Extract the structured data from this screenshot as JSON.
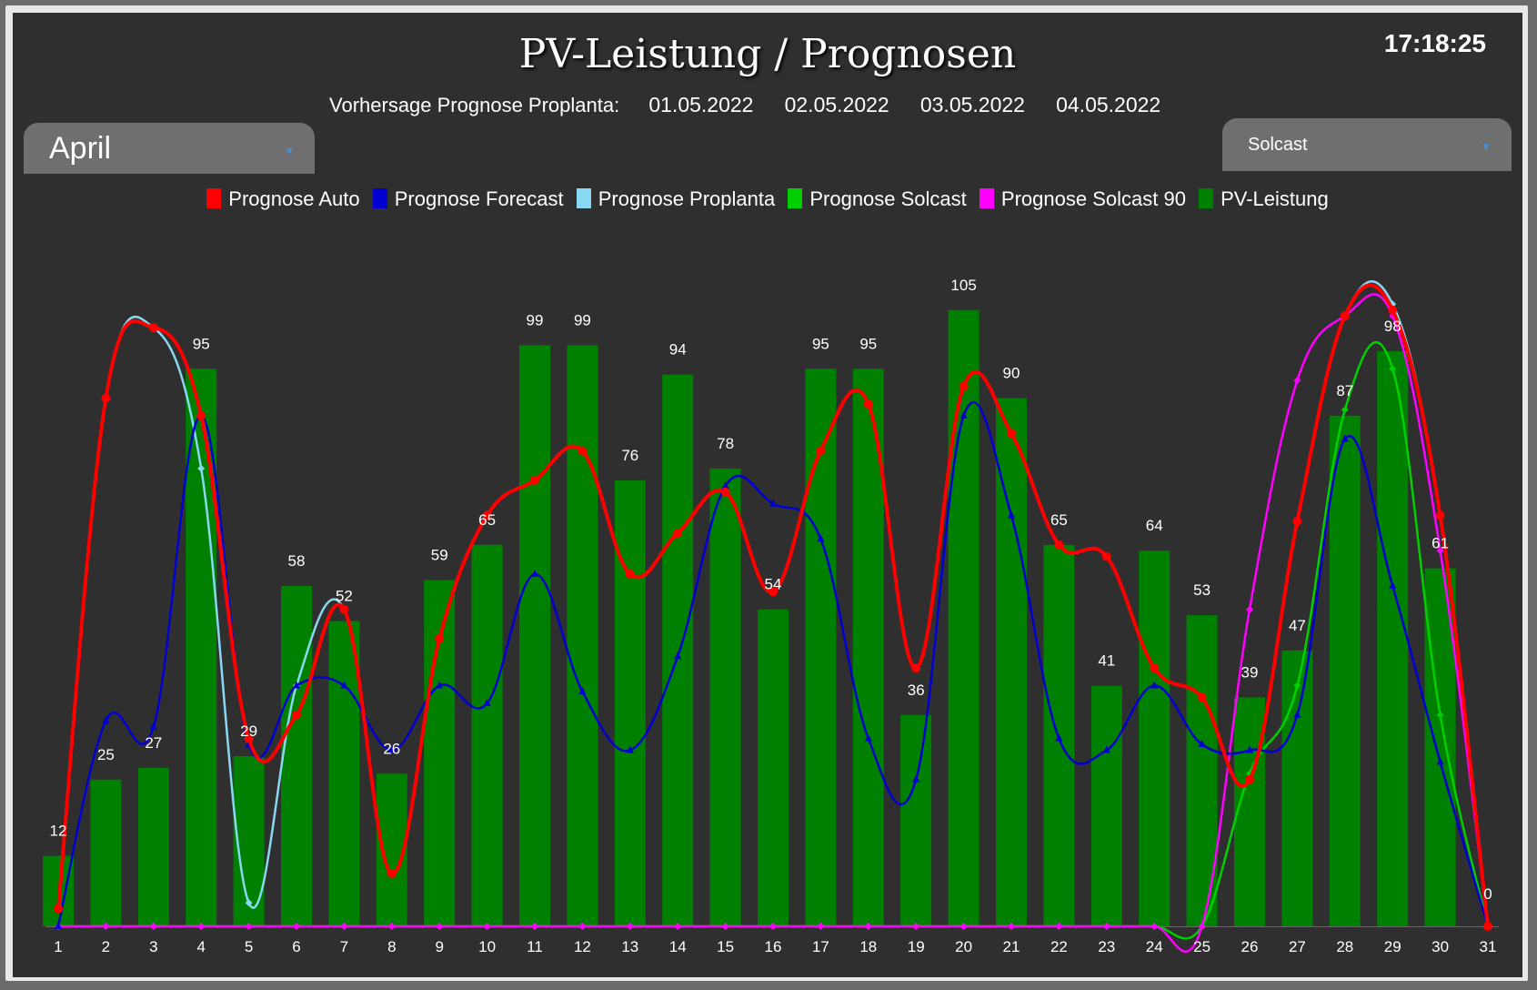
{
  "header": {
    "title": "PV-Leistung / Prognosen",
    "clock": "17:18:25",
    "forecast_label": "Vorhersage Prognose Proplanta:",
    "forecast_dates": [
      "01.05.2022",
      "02.05.2022",
      "03.05.2022",
      "04.05.2022"
    ]
  },
  "controls": {
    "month_select": "April",
    "source_select": "Solcast"
  },
  "colors": {
    "background": "#2e2f2e",
    "bar": "#008000",
    "auto": "#ff0000",
    "forecast": "#0000d0",
    "proplanta": "#87d8f0",
    "solcast": "#00d000",
    "solcast90": "#ff00ff"
  },
  "chart_data": {
    "type": "bar",
    "title": "PV-Leistung / Prognosen",
    "xlabel": "",
    "ylabel": "",
    "grid": false,
    "legend_position": "top",
    "ylim": [
      0,
      115
    ],
    "categories": [
      "1",
      "2",
      "3",
      "4",
      "5",
      "6",
      "7",
      "8",
      "9",
      "10",
      "11",
      "12",
      "13",
      "14",
      "15",
      "16",
      "17",
      "18",
      "19",
      "20",
      "21",
      "22",
      "23",
      "24",
      "25",
      "26",
      "27",
      "28",
      "29",
      "30",
      "31"
    ],
    "series": [
      {
        "name": "PV-Leistung",
        "key": "pv",
        "type": "bar",
        "values": [
          12,
          25,
          27,
          95,
          29,
          58,
          52,
          26,
          59,
          65,
          99,
          99,
          76,
          94,
          78,
          54,
          95,
          95,
          36,
          105,
          90,
          65,
          41,
          64,
          53,
          39,
          47,
          87,
          98,
          61,
          0
        ]
      },
      {
        "name": "Prognose Auto",
        "key": "auto",
        "type": "line",
        "values": [
          3,
          90,
          102,
          87,
          32,
          36,
          54,
          9,
          49,
          70,
          76,
          81,
          60,
          67,
          74,
          57,
          81,
          89,
          44,
          92,
          84,
          65,
          63,
          44,
          39,
          25,
          69,
          104,
          105,
          70,
          0
        ]
      },
      {
        "name": "Prognose Forecast",
        "key": "forecast",
        "type": "line",
        "values": [
          0,
          35,
          34,
          87,
          31,
          41,
          41,
          30,
          41,
          38,
          60,
          40,
          30,
          46,
          75,
          72,
          66,
          32,
          25,
          87,
          70,
          32,
          30,
          41,
          31,
          30,
          36,
          83,
          58,
          28,
          0
        ]
      },
      {
        "name": "Prognose Proplanta",
        "key": "proplanta",
        "type": "line",
        "values": [
          3,
          90,
          102,
          78,
          4,
          41,
          54,
          9,
          49,
          70,
          76,
          81,
          60,
          67,
          74,
          57,
          81,
          89,
          44,
          92,
          84,
          65,
          63,
          44,
          39,
          25,
          69,
          104,
          106,
          70,
          0
        ]
      },
      {
        "name": "Prognose Solcast",
        "key": "solcast",
        "type": "line",
        "values": [
          0,
          0,
          0,
          0,
          0,
          0,
          0,
          0,
          0,
          0,
          0,
          0,
          0,
          0,
          0,
          0,
          0,
          0,
          0,
          0,
          0,
          0,
          0,
          0,
          0,
          26,
          41,
          88,
          95,
          36,
          0
        ]
      },
      {
        "name": "Prognose Solcast 90",
        "key": "solcast90",
        "type": "line",
        "values": [
          0,
          0,
          0,
          0,
          0,
          0,
          0,
          0,
          0,
          0,
          0,
          0,
          0,
          0,
          0,
          0,
          0,
          0,
          0,
          0,
          0,
          0,
          0,
          0,
          0,
          54,
          93,
          104,
          104,
          64,
          0
        ]
      }
    ],
    "legend": [
      "Prognose Auto",
      "Prognose Forecast",
      "Prognose Proplanta",
      "Prognose Solcast",
      "Prognose Solcast 90",
      "PV-Leistung"
    ]
  }
}
